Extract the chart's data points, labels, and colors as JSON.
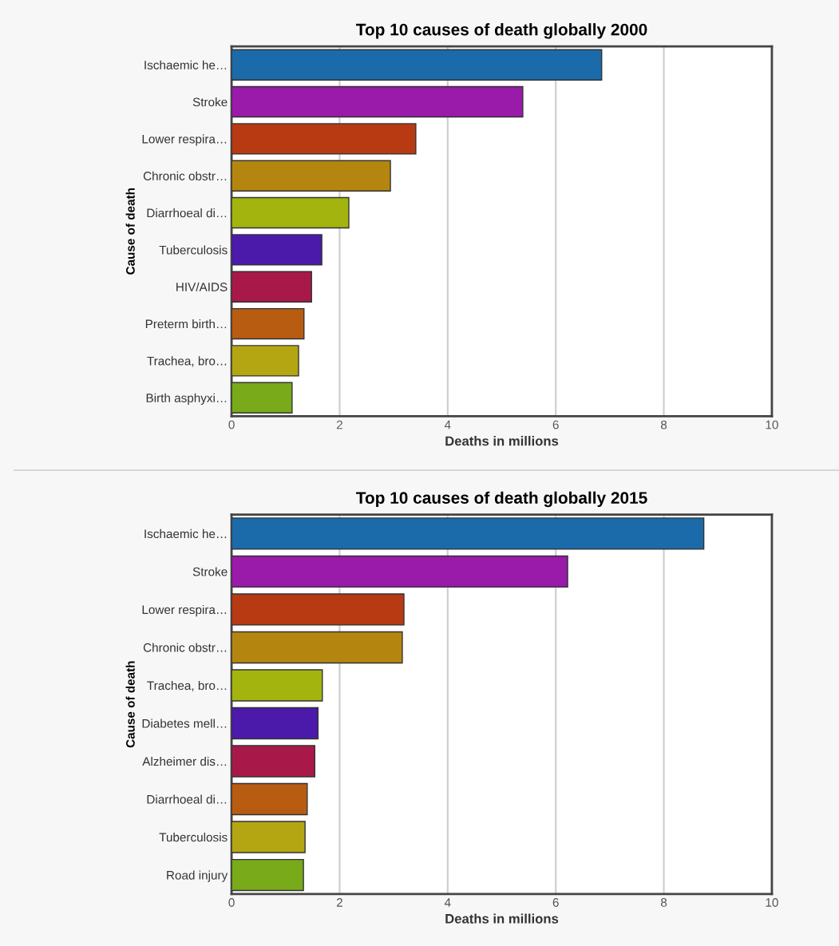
{
  "chart_data": [
    {
      "type": "bar",
      "orientation": "horizontal",
      "title": "Top 10 causes of death globally 2000",
      "xlabel": "Deaths in millions",
      "ylabel": "Cause of death",
      "categories": [
        "Ischaemic he…",
        "Stroke",
        "Lower respira…",
        "Chronic obstr…",
        "Diarrhoeal di…",
        "Tuberculosis",
        "HIV/AIDS",
        "Preterm birth…",
        "Trachea, bro…",
        "Birth asphyxi…"
      ],
      "values": [
        6.85,
        5.39,
        3.41,
        2.94,
        2.17,
        1.67,
        1.48,
        1.34,
        1.24,
        1.12
      ],
      "colors": [
        "#1b6aa9",
        "#9a1aa9",
        "#b83a12",
        "#b5860f",
        "#a3b40f",
        "#4c1aaa",
        "#a8194a",
        "#b85c12",
        "#b3a612",
        "#78aa1a"
      ],
      "xlim": [
        0,
        10
      ],
      "xticks": [
        0,
        2,
        4,
        6,
        8,
        10
      ],
      "grid": "x",
      "legend": false
    },
    {
      "type": "bar",
      "orientation": "horizontal",
      "title": "Top 10 causes of death globally 2015",
      "xlabel": "Deaths in millions",
      "ylabel": "Cause of death",
      "categories": [
        "Ischaemic he…",
        "Stroke",
        "Lower respira…",
        "Chronic obstr…",
        "Trachea, bro…",
        "Diabetes mell…",
        "Alzheimer dis…",
        "Diarrhoeal di…",
        "Tuberculosis",
        "Road injury"
      ],
      "values": [
        8.74,
        6.22,
        3.19,
        3.16,
        1.68,
        1.6,
        1.54,
        1.4,
        1.36,
        1.33
      ],
      "colors": [
        "#1b6aa9",
        "#9a1aa9",
        "#b83a12",
        "#b5860f",
        "#a3b40f",
        "#4c1aaa",
        "#a8194a",
        "#b85c12",
        "#b3a612",
        "#78aa1a"
      ],
      "xlim": [
        0,
        10
      ],
      "xticks": [
        0,
        2,
        4,
        6,
        8,
        10
      ],
      "grid": "x",
      "legend": false
    }
  ]
}
